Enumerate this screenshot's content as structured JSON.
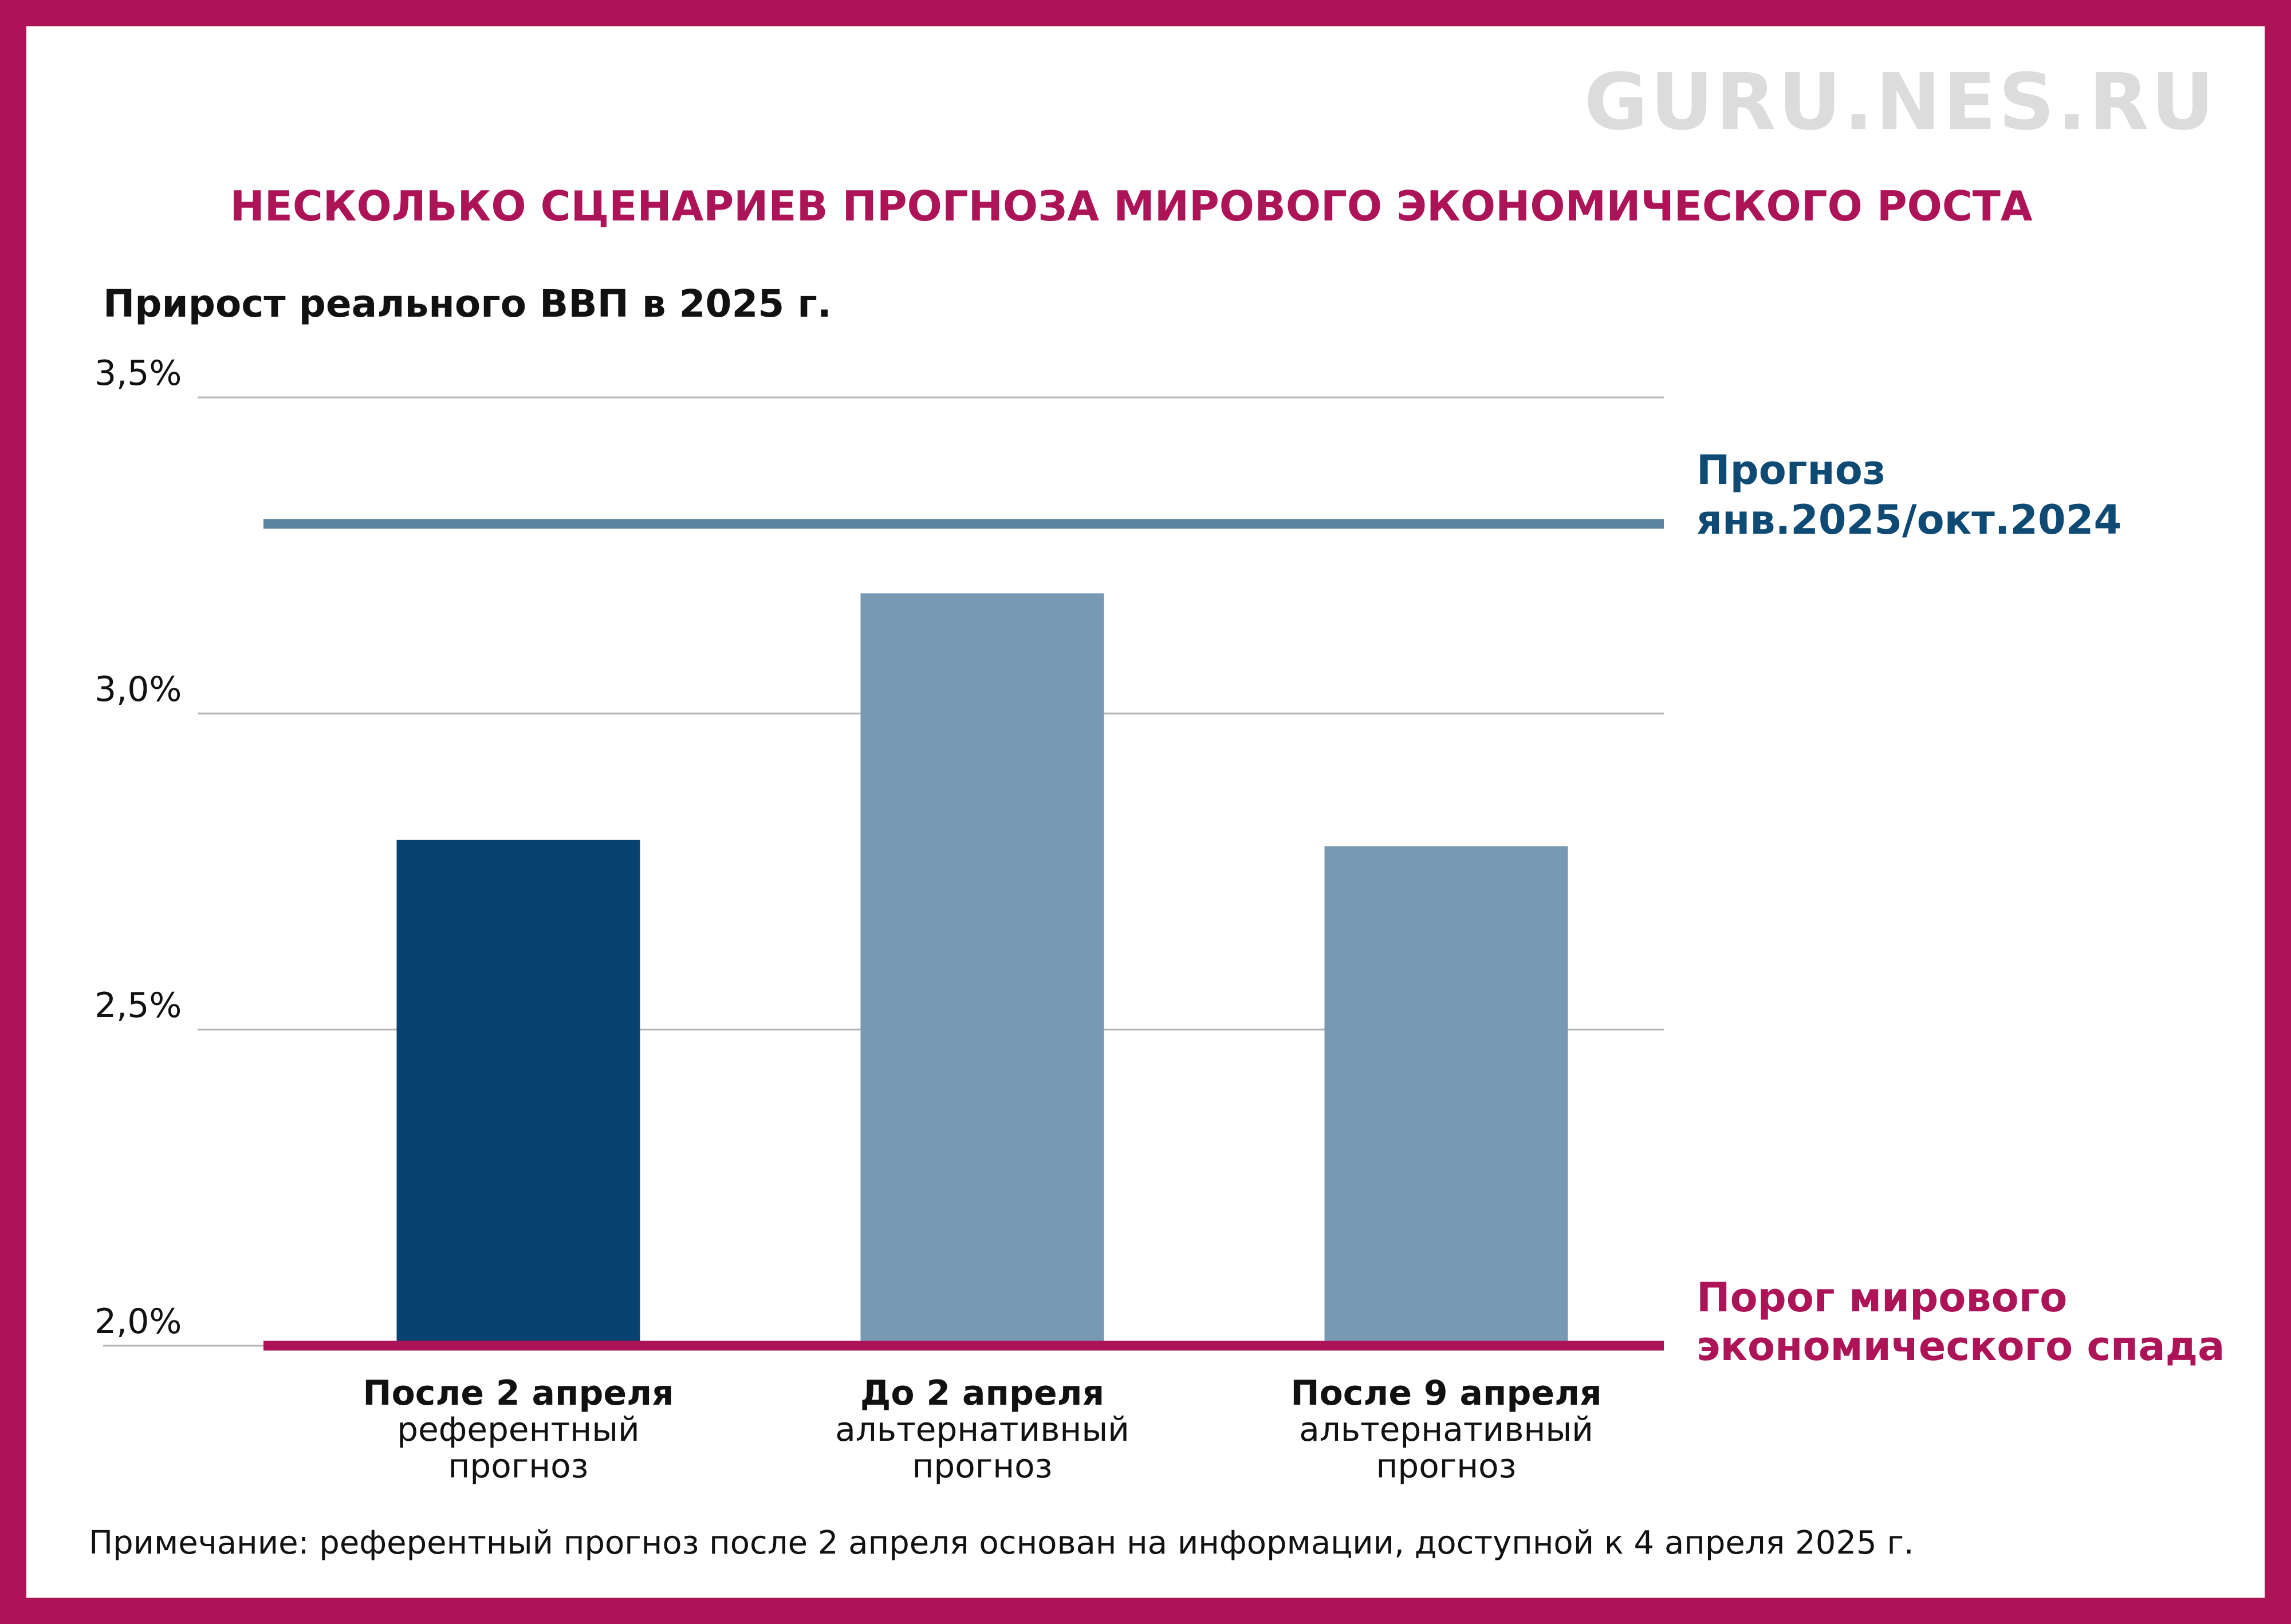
{
  "watermark": "GURU.NES.RU",
  "note": "Примечание: референтный прогноз после 2 апреля основан на информации, доступной к 4 апреля 2025 г.",
  "colors": {
    "frame": "#AD1457",
    "bar_dark": "#064372",
    "bar_light": "#7799B4",
    "forecast_line": "#5B84A1",
    "forecast_text": "#0E4A74",
    "threshold": "#AD1457"
  },
  "chart_data": {
    "type": "bar",
    "title": "НЕСКОЛЬКО СЦЕНАРИЕВ ПРОГНОЗА МИРОВОГО ЭКОНОМИЧЕСКОГО РОСТА",
    "subtitle": "Прирост реального ВВП в 2025 г.",
    "ylim": [
      2.0,
      3.5
    ],
    "yticks": [
      {
        "value": 3.5,
        "label": "3,5%"
      },
      {
        "value": 3.0,
        "label": "3,0%"
      },
      {
        "value": 2.5,
        "label": "2,5%"
      },
      {
        "value": 2.0,
        "label": "2,0%"
      }
    ],
    "grid": true,
    "categories": [
      {
        "bold": "После 2 апреля",
        "line2": "референтный",
        "line3": "прогноз",
        "value": 2.8,
        "color": "#064372"
      },
      {
        "bold": "До 2 апреля",
        "line2": "альтернативный",
        "line3": "прогноз",
        "value": 3.19,
        "color": "#7799B4"
      },
      {
        "bold": "После 9 апреля",
        "line2": "альтернативный",
        "line3": "прогноз",
        "value": 2.79,
        "color": "#7799B4"
      }
    ],
    "reference_lines": [
      {
        "value": 3.3,
        "line1": "Прогноз",
        "line2": "янв.2025/окт.2024",
        "color": "#5B84A1",
        "text_color": "#0E4A74"
      },
      {
        "value": 2.0,
        "line1": "Порог мирового",
        "line2": "экономического спада",
        "color": "#AD1457",
        "text_color": "#AD1457"
      }
    ]
  }
}
